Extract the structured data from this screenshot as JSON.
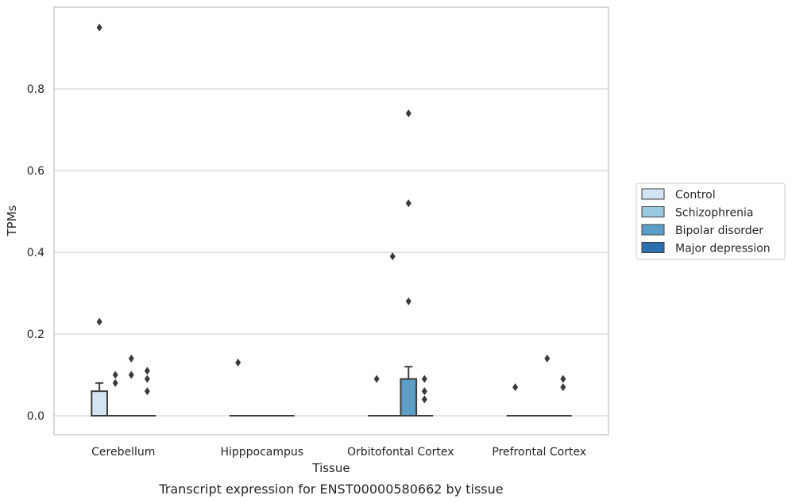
{
  "caption": "Transcript expression for ENST00000580662 by tissue",
  "chart_data": {
    "type": "box",
    "title": "",
    "xlabel": "Tissue",
    "ylabel": "TPMs",
    "ylim": [
      -0.045,
      0.99
    ],
    "yticks": [
      0.0,
      0.2,
      0.4,
      0.6,
      0.8
    ],
    "ytick_labels": [
      "0.0",
      "0.2",
      "0.4",
      "0.6",
      "0.8"
    ],
    "grid": "horizontal",
    "legend_position": "right",
    "categories": [
      "Cerebellum",
      "Hipppocampus",
      "Orbitofontal Cortex",
      "Prefrontal Cortex"
    ],
    "series": [
      {
        "name": "Control",
        "color": "#d3e4f3",
        "boxes": [
          {
            "q1": 0.0,
            "median": 0.0,
            "q3": 0.06,
            "whisker_low": 0.0,
            "whisker_high": 0.08,
            "outliers": [
              0.23,
              0.95
            ]
          },
          {
            "q1": 0.0,
            "median": 0.0,
            "q3": 0.0,
            "whisker_low": 0.0,
            "whisker_high": 0.0,
            "outliers": [
              0.13
            ]
          },
          {
            "q1": 0.0,
            "median": 0.0,
            "q3": 0.0,
            "whisker_low": 0.0,
            "whisker_high": 0.0,
            "outliers": [
              0.09
            ]
          },
          {
            "q1": 0.0,
            "median": 0.0,
            "q3": 0.0,
            "whisker_low": 0.0,
            "whisker_high": 0.0,
            "outliers": [
              0.07
            ]
          }
        ]
      },
      {
        "name": "Schizophrenia",
        "color": "#9ac8e0",
        "boxes": [
          {
            "q1": 0.0,
            "median": 0.0,
            "q3": 0.0,
            "whisker_low": 0.0,
            "whisker_high": 0.0,
            "outliers": [
              0.08,
              0.1
            ]
          },
          {
            "q1": 0.0,
            "median": 0.0,
            "q3": 0.0,
            "whisker_low": 0.0,
            "whisker_high": 0.0,
            "outliers": []
          },
          {
            "q1": 0.0,
            "median": 0.0,
            "q3": 0.0,
            "whisker_low": 0.0,
            "whisker_high": 0.0,
            "outliers": [
              0.39
            ]
          },
          {
            "q1": 0.0,
            "median": 0.0,
            "q3": 0.0,
            "whisker_low": 0.0,
            "whisker_high": 0.0,
            "outliers": []
          }
        ]
      },
      {
        "name": "Bipolar disorder",
        "color": "#5b9fc9",
        "boxes": [
          {
            "q1": 0.0,
            "median": 0.0,
            "q3": 0.0,
            "whisker_low": 0.0,
            "whisker_high": 0.0,
            "outliers": [
              0.1,
              0.14
            ]
          },
          {
            "q1": 0.0,
            "median": 0.0,
            "q3": 0.0,
            "whisker_low": 0.0,
            "whisker_high": 0.0,
            "outliers": []
          },
          {
            "q1": 0.0,
            "median": 0.0,
            "q3": 0.09,
            "whisker_low": 0.0,
            "whisker_high": 0.12,
            "outliers": [
              0.28,
              0.52,
              0.74
            ]
          },
          {
            "q1": 0.0,
            "median": 0.0,
            "q3": 0.0,
            "whisker_low": 0.0,
            "whisker_high": 0.0,
            "outliers": [
              0.14
            ]
          }
        ]
      },
      {
        "name": "Major depression",
        "color": "#2b6fae",
        "boxes": [
          {
            "q1": 0.0,
            "median": 0.0,
            "q3": 0.0,
            "whisker_low": 0.0,
            "whisker_high": 0.0,
            "outliers": [
              0.06,
              0.09,
              0.11
            ]
          },
          {
            "q1": 0.0,
            "median": 0.0,
            "q3": 0.0,
            "whisker_low": 0.0,
            "whisker_high": 0.0,
            "outliers": []
          },
          {
            "q1": 0.0,
            "median": 0.0,
            "q3": 0.0,
            "whisker_low": 0.0,
            "whisker_high": 0.0,
            "outliers": [
              0.04,
              0.06,
              0.09
            ]
          },
          {
            "q1": 0.0,
            "median": 0.0,
            "q3": 0.0,
            "whisker_low": 0.0,
            "whisker_high": 0.0,
            "outliers": [
              0.07,
              0.09
            ]
          }
        ]
      }
    ]
  }
}
